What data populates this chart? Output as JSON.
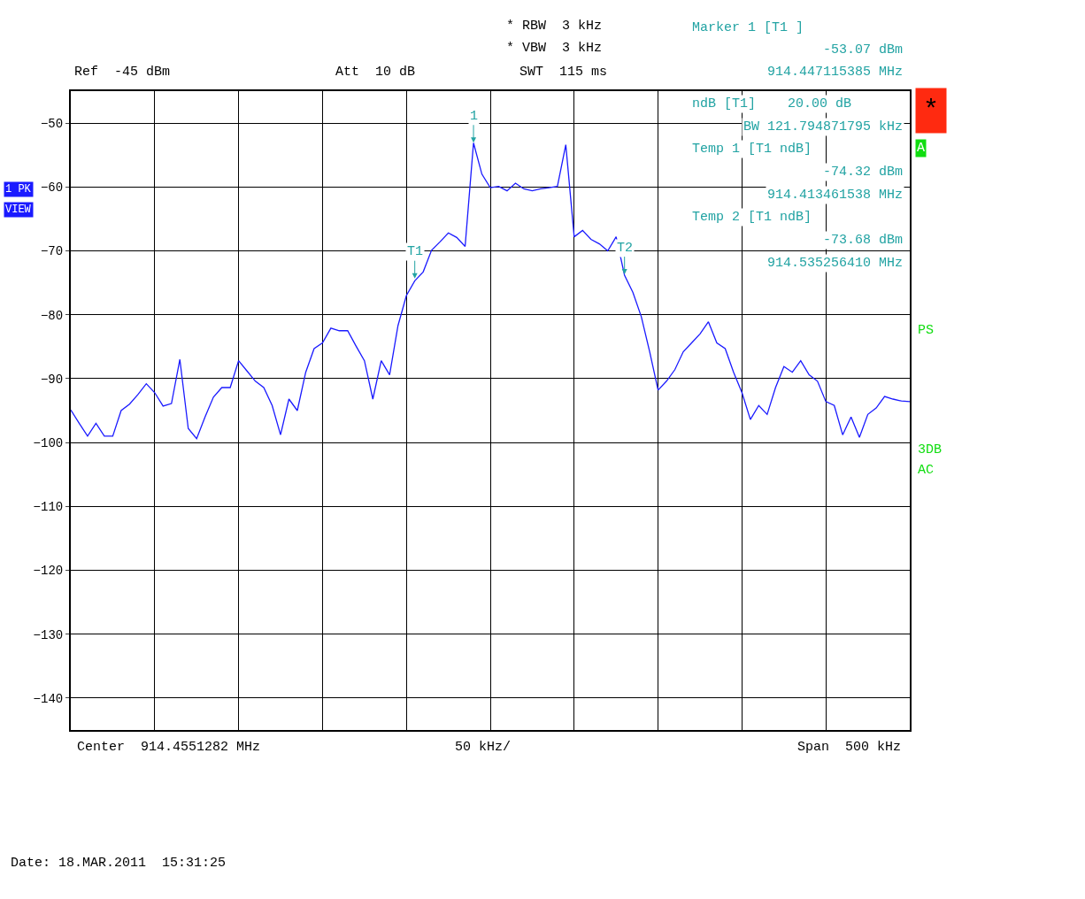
{
  "chart_data": {
    "type": "line",
    "categories": [
      null,
      null,
      null,
      null,
      null,
      null,
      null,
      null,
      null,
      null,
      null,
      null,
      null,
      null,
      null,
      null,
      null,
      null,
      null,
      null,
      null,
      null,
      null,
      null,
      null,
      null,
      null,
      null,
      null,
      null,
      null,
      null,
      null,
      null,
      null,
      null,
      null,
      null,
      null,
      null,
      null,
      null,
      null,
      null,
      null,
      null,
      null,
      null,
      null,
      null,
      null,
      null,
      null,
      null,
      null,
      null,
      null,
      null,
      null,
      null,
      null,
      null,
      null,
      null,
      null,
      null,
      null,
      null,
      null,
      null,
      null,
      null,
      null,
      null,
      null,
      null,
      null,
      null,
      null,
      null,
      null,
      null,
      null,
      null,
      null,
      null,
      null,
      null,
      null,
      null,
      null,
      null,
      null,
      null,
      null,
      null,
      null,
      null,
      null,
      null,
      null
    ],
    "series": [
      {
        "color": "#1a1aff",
        "values": [
          -94.9,
          -97,
          -99,
          -97,
          -99,
          -99,
          -95,
          -94,
          -92.5,
          -90.8,
          -92.2,
          -94.3,
          -93.9,
          -87,
          -97.8,
          -99.4,
          -96,
          -92.9,
          -91.4,
          -91.4,
          -87.2,
          -88.8,
          -90.4,
          -91.4,
          -94.2,
          -98.8,
          -93.2,
          -95,
          -89,
          -85.3,
          -84.4,
          -82.1,
          -82.5,
          -82.5,
          -84.9,
          -87.2,
          -93.2,
          -87.2,
          -89.4,
          -81.7,
          -77,
          -74.7,
          -73.3,
          -69.9,
          -68.6,
          -67.2,
          -67.9,
          -69.3,
          -53.1,
          -58,
          -60.1,
          -59.9,
          -60.6,
          -59.4,
          -60.3,
          -60.6,
          -60.3,
          -60.1,
          -59.9,
          -53.4,
          -67.8,
          -66.8,
          -68.2,
          -68.9,
          -70,
          -67.8,
          -73.8,
          -76.5,
          -80.3,
          -85.8,
          -91.8,
          -90.4,
          -88.6,
          -85.8,
          -84.4,
          -83,
          -81.1,
          -84.4,
          -85.3,
          -89,
          -92.2,
          -96.4,
          -94.2,
          -95.6,
          -91.4,
          -88.1,
          -89,
          -87.2,
          -89.4,
          -90.4,
          -93.6,
          -94.2,
          -98.8,
          -96,
          -99.2,
          -95.6,
          -94.6,
          -92.8,
          -93.2,
          -93.5,
          -93.6
        ]
      }
    ],
    "ylim": [
      -145,
      -45
    ],
    "yticks": [
      -50,
      -60,
      -70,
      -80,
      -90,
      -100,
      -110,
      -120,
      -130,
      -140
    ],
    "grid": true,
    "annotations": [
      "Ref  -45 dBm",
      "Att  10 dB",
      "* RBW  3 kHz",
      "* VBW  3 kHz",
      "SWT  115 ms",
      "Marker 1 [T1 ]",
      "-53.07 dBm",
      "914.447115385 MHz",
      "ndB [T1]    20.00 dB",
      "BW 121.794871795 kHz",
      "Temp 1 [T1 ndB]",
      "-74.32 dBm",
      "914.413461538 MHz",
      "Temp 2 [T1 ndB]",
      "-73.68 dBm",
      "914.535256410 MHz",
      "1 PK",
      "VIEW",
      "*",
      "A",
      "PS",
      "3DB",
      "AC",
      "Center  914.4551282 MHz",
      "50 kHz/",
      "Span  500 kHz",
      "Date: 18.MAR.2011  15:31:25",
      {
        "text": "1",
        "y": -53.07
      },
      {
        "text": "T1",
        "y": -74.32
      },
      {
        "text": "T2",
        "y": -73.68
      }
    ]
  }
}
